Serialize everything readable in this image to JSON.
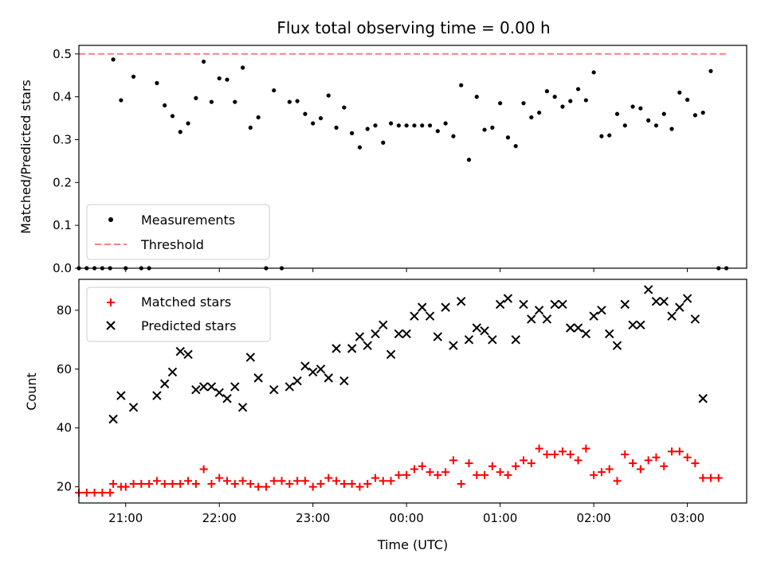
{
  "title": "Flux total observing time = 0.00 h",
  "chart_data": [
    {
      "type": "scatter",
      "ylabel": "Matched/Predicted stars",
      "ylim": [
        0,
        0.52
      ],
      "yticks": [
        "0.0",
        "0.1",
        "0.2",
        "0.3",
        "0.4",
        "0.5"
      ],
      "legend_position": "lower-left",
      "threshold": {
        "name": "Threshold",
        "value": 0.5,
        "color": "#ff7f7f"
      },
      "series": [
        {
          "name": "Measurements",
          "color": "#000000",
          "points": [
            [
              "20:30",
              0.0
            ],
            [
              "20:35",
              0.0
            ],
            [
              "20:40",
              0.0
            ],
            [
              "20:45",
              0.0
            ],
            [
              "20:50",
              0.0
            ],
            [
              "20:52",
              0.487
            ],
            [
              "20:57",
              0.392
            ],
            [
              "21:00",
              0.0
            ],
            [
              "21:05",
              0.447
            ],
            [
              "21:10",
              0.0
            ],
            [
              "21:15",
              0.0
            ],
            [
              "21:20",
              0.432
            ],
            [
              "21:25",
              0.38
            ],
            [
              "21:30",
              0.355
            ],
            [
              "21:35",
              0.318
            ],
            [
              "21:40",
              0.338
            ],
            [
              "21:45",
              0.397
            ],
            [
              "21:50",
              0.482
            ],
            [
              "21:55",
              0.388
            ],
            [
              "22:00",
              0.443
            ],
            [
              "22:05",
              0.44
            ],
            [
              "22:10",
              0.388
            ],
            [
              "22:15",
              0.468
            ],
            [
              "22:20",
              0.328
            ],
            [
              "22:25",
              0.352
            ],
            [
              "22:30",
              0.0
            ],
            [
              "22:35",
              0.415
            ],
            [
              "22:40",
              0.0
            ],
            [
              "22:45",
              0.388
            ],
            [
              "22:50",
              0.39
            ],
            [
              "22:55",
              0.36
            ],
            [
              "23:00",
              0.338
            ],
            [
              "23:05",
              0.35
            ],
            [
              "23:10",
              0.403
            ],
            [
              "23:15",
              0.328
            ],
            [
              "23:20",
              0.375
            ],
            [
              "23:25",
              0.315
            ],
            [
              "23:30",
              0.282
            ],
            [
              "23:35",
              0.325
            ],
            [
              "23:40",
              0.333
            ],
            [
              "23:45",
              0.293
            ],
            [
              "23:50",
              0.338
            ],
            [
              "23:55",
              0.333
            ],
            [
              "00:00",
              0.333
            ],
            [
              "00:05",
              0.333
            ],
            [
              "00:10",
              0.333
            ],
            [
              "00:15",
              0.333
            ],
            [
              "00:20",
              0.32
            ],
            [
              "00:25",
              0.338
            ],
            [
              "00:30",
              0.308
            ],
            [
              "00:35",
              0.427
            ],
            [
              "00:40",
              0.253
            ],
            [
              "00:45",
              0.4
            ],
            [
              "00:50",
              0.323
            ],
            [
              "00:55",
              0.328
            ],
            [
              "01:00",
              0.385
            ],
            [
              "01:05",
              0.305
            ],
            [
              "01:10",
              0.285
            ],
            [
              "01:15",
              0.385
            ],
            [
              "01:20",
              0.352
            ],
            [
              "01:25",
              0.363
            ],
            [
              "01:30",
              0.413
            ],
            [
              "01:35",
              0.4
            ],
            [
              "01:40",
              0.377
            ],
            [
              "01:45",
              0.39
            ],
            [
              "01:50",
              0.418
            ],
            [
              "01:55",
              0.392
            ],
            [
              "02:00",
              0.457
            ],
            [
              "02:05",
              0.308
            ],
            [
              "02:10",
              0.31
            ],
            [
              "02:15",
              0.36
            ],
            [
              "02:20",
              0.333
            ],
            [
              "02:25",
              0.377
            ],
            [
              "02:30",
              0.373
            ],
            [
              "02:35",
              0.345
            ],
            [
              "02:40",
              0.333
            ],
            [
              "02:45",
              0.36
            ],
            [
              "02:50",
              0.325
            ],
            [
              "02:55",
              0.41
            ],
            [
              "03:00",
              0.393
            ],
            [
              "03:05",
              0.357
            ],
            [
              "03:10",
              0.363
            ],
            [
              "03:15",
              0.46
            ],
            [
              "03:20",
              0.0
            ],
            [
              "03:25",
              0.0
            ]
          ]
        }
      ]
    },
    {
      "type": "scatter",
      "xlabel": "Time (UTC)",
      "ylabel": "Count",
      "ylim": [
        14.5,
        90.5
      ],
      "yticks": [
        "20",
        "40",
        "60",
        "80"
      ],
      "xticks": [
        "21:00",
        "22:00",
        "23:00",
        "00:00",
        "01:00",
        "02:00",
        "03:00"
      ],
      "legend_position": "upper-left",
      "series": [
        {
          "name": "Matched stars",
          "marker": "plus",
          "color": "#ff0000",
          "points": [
            [
              "20:30",
              18
            ],
            [
              "20:35",
              18
            ],
            [
              "20:40",
              18
            ],
            [
              "20:45",
              18
            ],
            [
              "20:50",
              18
            ],
            [
              "20:52",
              21
            ],
            [
              "20:57",
              20
            ],
            [
              "21:00",
              20
            ],
            [
              "21:05",
              21
            ],
            [
              "21:10",
              21
            ],
            [
              "21:15",
              21
            ],
            [
              "21:20",
              22
            ],
            [
              "21:25",
              21
            ],
            [
              "21:30",
              21
            ],
            [
              "21:35",
              21
            ],
            [
              "21:40",
              22
            ],
            [
              "21:45",
              21
            ],
            [
              "21:50",
              26
            ],
            [
              "21:55",
              21
            ],
            [
              "22:00",
              23
            ],
            [
              "22:05",
              22
            ],
            [
              "22:10",
              21
            ],
            [
              "22:15",
              22
            ],
            [
              "22:20",
              21
            ],
            [
              "22:25",
              20
            ],
            [
              "22:30",
              20
            ],
            [
              "22:35",
              22
            ],
            [
              "22:40",
              22
            ],
            [
              "22:45",
              21
            ],
            [
              "22:50",
              22
            ],
            [
              "22:55",
              22
            ],
            [
              "23:00",
              20
            ],
            [
              "23:05",
              21
            ],
            [
              "23:10",
              23
            ],
            [
              "23:15",
              22
            ],
            [
              "23:20",
              21
            ],
            [
              "23:25",
              21
            ],
            [
              "23:30",
              20
            ],
            [
              "23:35",
              21
            ],
            [
              "23:40",
              23
            ],
            [
              "23:45",
              22
            ],
            [
              "23:50",
              22
            ],
            [
              "23:55",
              24
            ],
            [
              "00:00",
              24
            ],
            [
              "00:05",
              26
            ],
            [
              "00:10",
              27
            ],
            [
              "00:15",
              25
            ],
            [
              "00:20",
              24
            ],
            [
              "00:25",
              25
            ],
            [
              "00:30",
              29
            ],
            [
              "00:35",
              21
            ],
            [
              "00:40",
              28
            ],
            [
              "00:45",
              24
            ],
            [
              "00:50",
              24
            ],
            [
              "00:55",
              27
            ],
            [
              "01:00",
              25
            ],
            [
              "01:05",
              24
            ],
            [
              "01:10",
              27
            ],
            [
              "01:15",
              29
            ],
            [
              "01:20",
              28
            ],
            [
              "01:25",
              33
            ],
            [
              "01:30",
              31
            ],
            [
              "01:35",
              31
            ],
            [
              "01:40",
              32
            ],
            [
              "01:45",
              31
            ],
            [
              "01:50",
              29
            ],
            [
              "01:55",
              33
            ],
            [
              "02:00",
              24
            ],
            [
              "02:05",
              25
            ],
            [
              "02:10",
              26
            ],
            [
              "02:15",
              22
            ],
            [
              "02:20",
              31
            ],
            [
              "02:25",
              28
            ],
            [
              "02:30",
              26
            ],
            [
              "02:35",
              29
            ],
            [
              "02:40",
              30
            ],
            [
              "02:45",
              27
            ],
            [
              "02:50",
              32
            ],
            [
              "02:55",
              32
            ],
            [
              "03:00",
              30
            ],
            [
              "03:05",
              28
            ],
            [
              "03:10",
              23
            ],
            [
              "03:15",
              23
            ],
            [
              "03:20",
              23
            ]
          ]
        },
        {
          "name": "Predicted stars",
          "marker": "cross",
          "color": "#000000",
          "points": [
            [
              "20:52",
              43
            ],
            [
              "20:57",
              51
            ],
            [
              "21:05",
              47
            ],
            [
              "21:20",
              51
            ],
            [
              "21:25",
              55
            ],
            [
              "21:30",
              59
            ],
            [
              "21:35",
              66
            ],
            [
              "21:40",
              65
            ],
            [
              "21:45",
              53
            ],
            [
              "21:50",
              54
            ],
            [
              "21:55",
              54
            ],
            [
              "22:00",
              52
            ],
            [
              "22:05",
              50
            ],
            [
              "22:10",
              54
            ],
            [
              "22:15",
              47
            ],
            [
              "22:20",
              64
            ],
            [
              "22:25",
              57
            ],
            [
              "22:35",
              53
            ],
            [
              "22:45",
              54
            ],
            [
              "22:50",
              56
            ],
            [
              "22:55",
              61
            ],
            [
              "23:00",
              59
            ],
            [
              "23:05",
              60
            ],
            [
              "23:10",
              57
            ],
            [
              "23:15",
              67
            ],
            [
              "23:20",
              56
            ],
            [
              "23:25",
              67
            ],
            [
              "23:30",
              71
            ],
            [
              "23:35",
              68
            ],
            [
              "23:40",
              72
            ],
            [
              "23:45",
              75
            ],
            [
              "23:50",
              65
            ],
            [
              "23:55",
              72
            ],
            [
              "00:00",
              72
            ],
            [
              "00:05",
              78
            ],
            [
              "00:10",
              81
            ],
            [
              "00:15",
              78
            ],
            [
              "00:20",
              71
            ],
            [
              "00:25",
              81
            ],
            [
              "00:30",
              68
            ],
            [
              "00:35",
              83
            ],
            [
              "00:40",
              70
            ],
            [
              "00:45",
              74
            ],
            [
              "00:50",
              73
            ],
            [
              "00:55",
              70
            ],
            [
              "01:00",
              82
            ],
            [
              "01:05",
              84
            ],
            [
              "01:10",
              70
            ],
            [
              "01:15",
              82
            ],
            [
              "01:20",
              77
            ],
            [
              "01:25",
              80
            ],
            [
              "01:30",
              77
            ],
            [
              "01:35",
              82
            ],
            [
              "01:40",
              82
            ],
            [
              "01:45",
              74
            ],
            [
              "01:50",
              74
            ],
            [
              "01:55",
              72
            ],
            [
              "02:00",
              78
            ],
            [
              "02:05",
              80
            ],
            [
              "02:10",
              72
            ],
            [
              "02:15",
              68
            ],
            [
              "02:20",
              82
            ],
            [
              "02:25",
              75
            ],
            [
              "02:30",
              75
            ],
            [
              "02:35",
              87
            ],
            [
              "02:40",
              83
            ],
            [
              "02:45",
              83
            ],
            [
              "02:50",
              78
            ],
            [
              "02:55",
              81
            ],
            [
              "03:00",
              84
            ],
            [
              "03:05",
              77
            ],
            [
              "03:10",
              50
            ]
          ]
        }
      ]
    }
  ]
}
